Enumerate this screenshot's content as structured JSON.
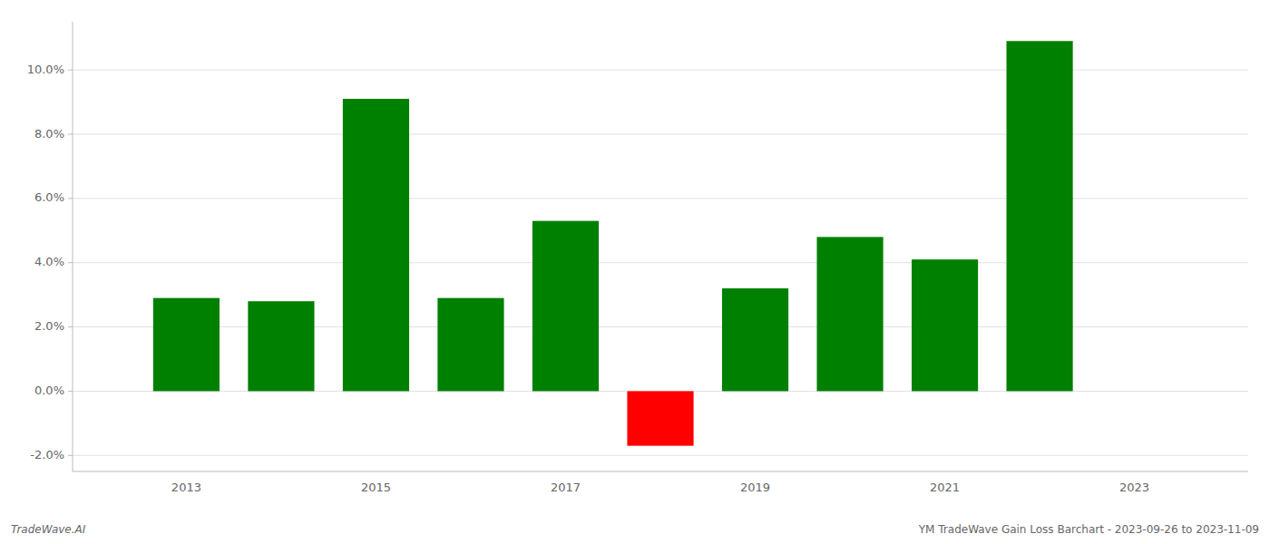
{
  "chart_data": {
    "type": "bar",
    "x": [
      2013,
      2014,
      2015,
      2016,
      2017,
      2018,
      2019,
      2020,
      2021,
      2022,
      2023
    ],
    "values": [
      0.029,
      0.028,
      0.091,
      0.029,
      0.053,
      -0.017,
      0.032,
      0.048,
      0.041,
      0.109,
      null
    ],
    "colors": [
      "#008000",
      "#008000",
      "#008000",
      "#008000",
      "#008000",
      "#ff0000",
      "#008000",
      "#008000",
      "#008000",
      "#008000",
      null
    ],
    "xlim": [
      2011.8,
      2024.2
    ],
    "xticks": [
      2013,
      2015,
      2017,
      2019,
      2021,
      2023
    ],
    "ylim": [
      -0.025,
      0.115
    ],
    "yticks": [
      {
        "value": -0.02,
        "label": "-2.0%"
      },
      {
        "value": 0.0,
        "label": "0.0%"
      },
      {
        "value": 0.02,
        "label": "2.0%"
      },
      {
        "value": 0.04,
        "label": "4.0%"
      },
      {
        "value": 0.06,
        "label": "6.0%"
      },
      {
        "value": 0.08,
        "label": "8.0%"
      },
      {
        "value": 0.1,
        "label": "10.0%"
      }
    ],
    "grid": true,
    "annotations": [
      "TradeWave.AI",
      "YM TradeWave Gain Loss Barchart - 2023-09-26 to 2023-11-09"
    ]
  }
}
